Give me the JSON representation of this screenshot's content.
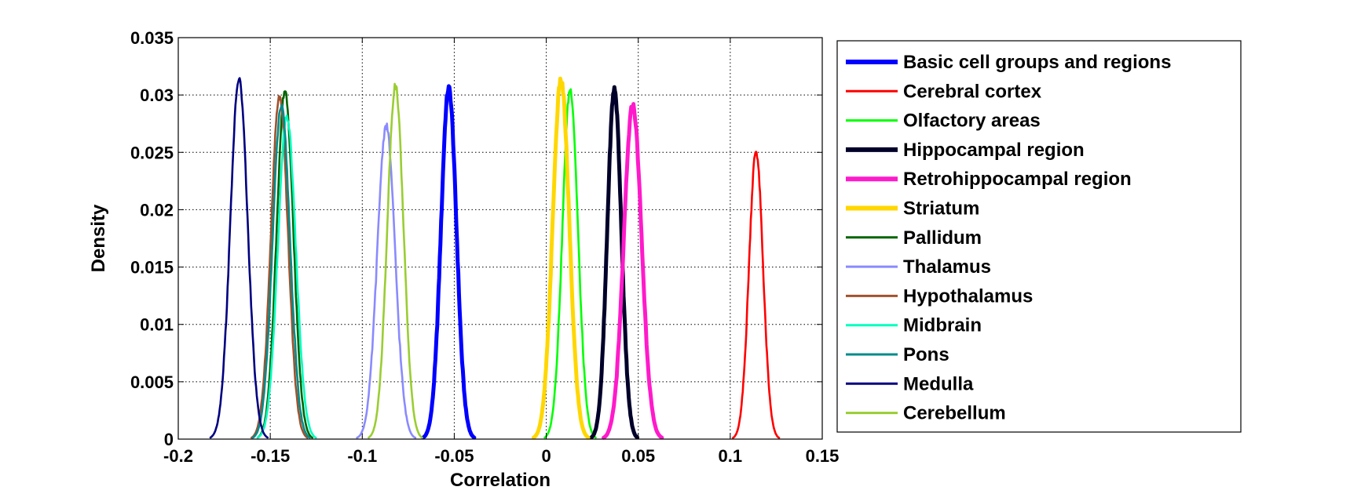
{
  "chart_data": {
    "type": "line",
    "title": "",
    "xlabel": "Correlation",
    "ylabel": "Density",
    "xlim": [
      -0.2,
      0.15
    ],
    "ylim": [
      0,
      0.035
    ],
    "xticks": [
      -0.2,
      -0.15,
      -0.1,
      -0.05,
      0,
      0.05,
      0.1,
      0.15
    ],
    "xtick_labels": [
      "-0.2",
      "-0.15",
      "-0.1",
      "-0.05",
      "0",
      "0.05",
      "0.1",
      "0.15"
    ],
    "yticks": [
      0,
      0.005,
      0.01,
      0.015,
      0.02,
      0.025,
      0.03,
      0.035
    ],
    "ytick_labels": [
      "0",
      "0.005",
      "0.01",
      "0.015",
      "0.02",
      "0.025",
      "0.03",
      "0.035"
    ],
    "grid": true,
    "legend_position": "outside-right",
    "series": [
      {
        "name": "Basic cell groups and regions",
        "color": "#0000ff",
        "thick": true,
        "mean": -0.053,
        "sd": 0.0042,
        "peak": 0.0306
      },
      {
        "name": "Cerebral cortex",
        "color": "#ff0000",
        "thick": false,
        "mean": 0.114,
        "sd": 0.0038,
        "peak": 0.0251
      },
      {
        "name": "Olfactory areas",
        "color": "#00ff00",
        "thick": false,
        "mean": 0.013,
        "sd": 0.0042,
        "peak": 0.0305
      },
      {
        "name": "Hippocampal region",
        "color": "#00002a",
        "thick": true,
        "mean": 0.037,
        "sd": 0.0038,
        "peak": 0.0305
      },
      {
        "name": "Retrohippocampal region",
        "color": "#ff1aca",
        "thick": true,
        "mean": 0.047,
        "sd": 0.0048,
        "peak": 0.0291
      },
      {
        "name": "Striatum",
        "color": "#ffd700",
        "thick": true,
        "mean": 0.008,
        "sd": 0.0045,
        "peak": 0.0313
      },
      {
        "name": "Pallidum",
        "color": "#006400",
        "thick": false,
        "mean": -0.142,
        "sd": 0.0045,
        "peak": 0.0304
      },
      {
        "name": "Thalamus",
        "color": "#8a8aff",
        "thick": false,
        "mean": -0.087,
        "sd": 0.0048,
        "peak": 0.0273
      },
      {
        "name": "Hypothalamus",
        "color": "#a0522d",
        "thick": false,
        "mean": -0.145,
        "sd": 0.0046,
        "peak": 0.0298
      },
      {
        "name": "Midbrain",
        "color": "#00ffbf",
        "thick": false,
        "mean": -0.141,
        "sd": 0.0048,
        "peak": 0.0281
      },
      {
        "name": "Pons",
        "color": "#008b8b",
        "thick": false,
        "mean": -0.144,
        "sd": 0.0047,
        "peak": 0.029
      },
      {
        "name": "Medulla",
        "color": "#000080",
        "thick": false,
        "mean": -0.167,
        "sd": 0.0047,
        "peak": 0.0314
      },
      {
        "name": "Cerebellum",
        "color": "#9acd32",
        "thick": false,
        "mean": -0.082,
        "sd": 0.0044,
        "peak": 0.0308
      }
    ]
  }
}
